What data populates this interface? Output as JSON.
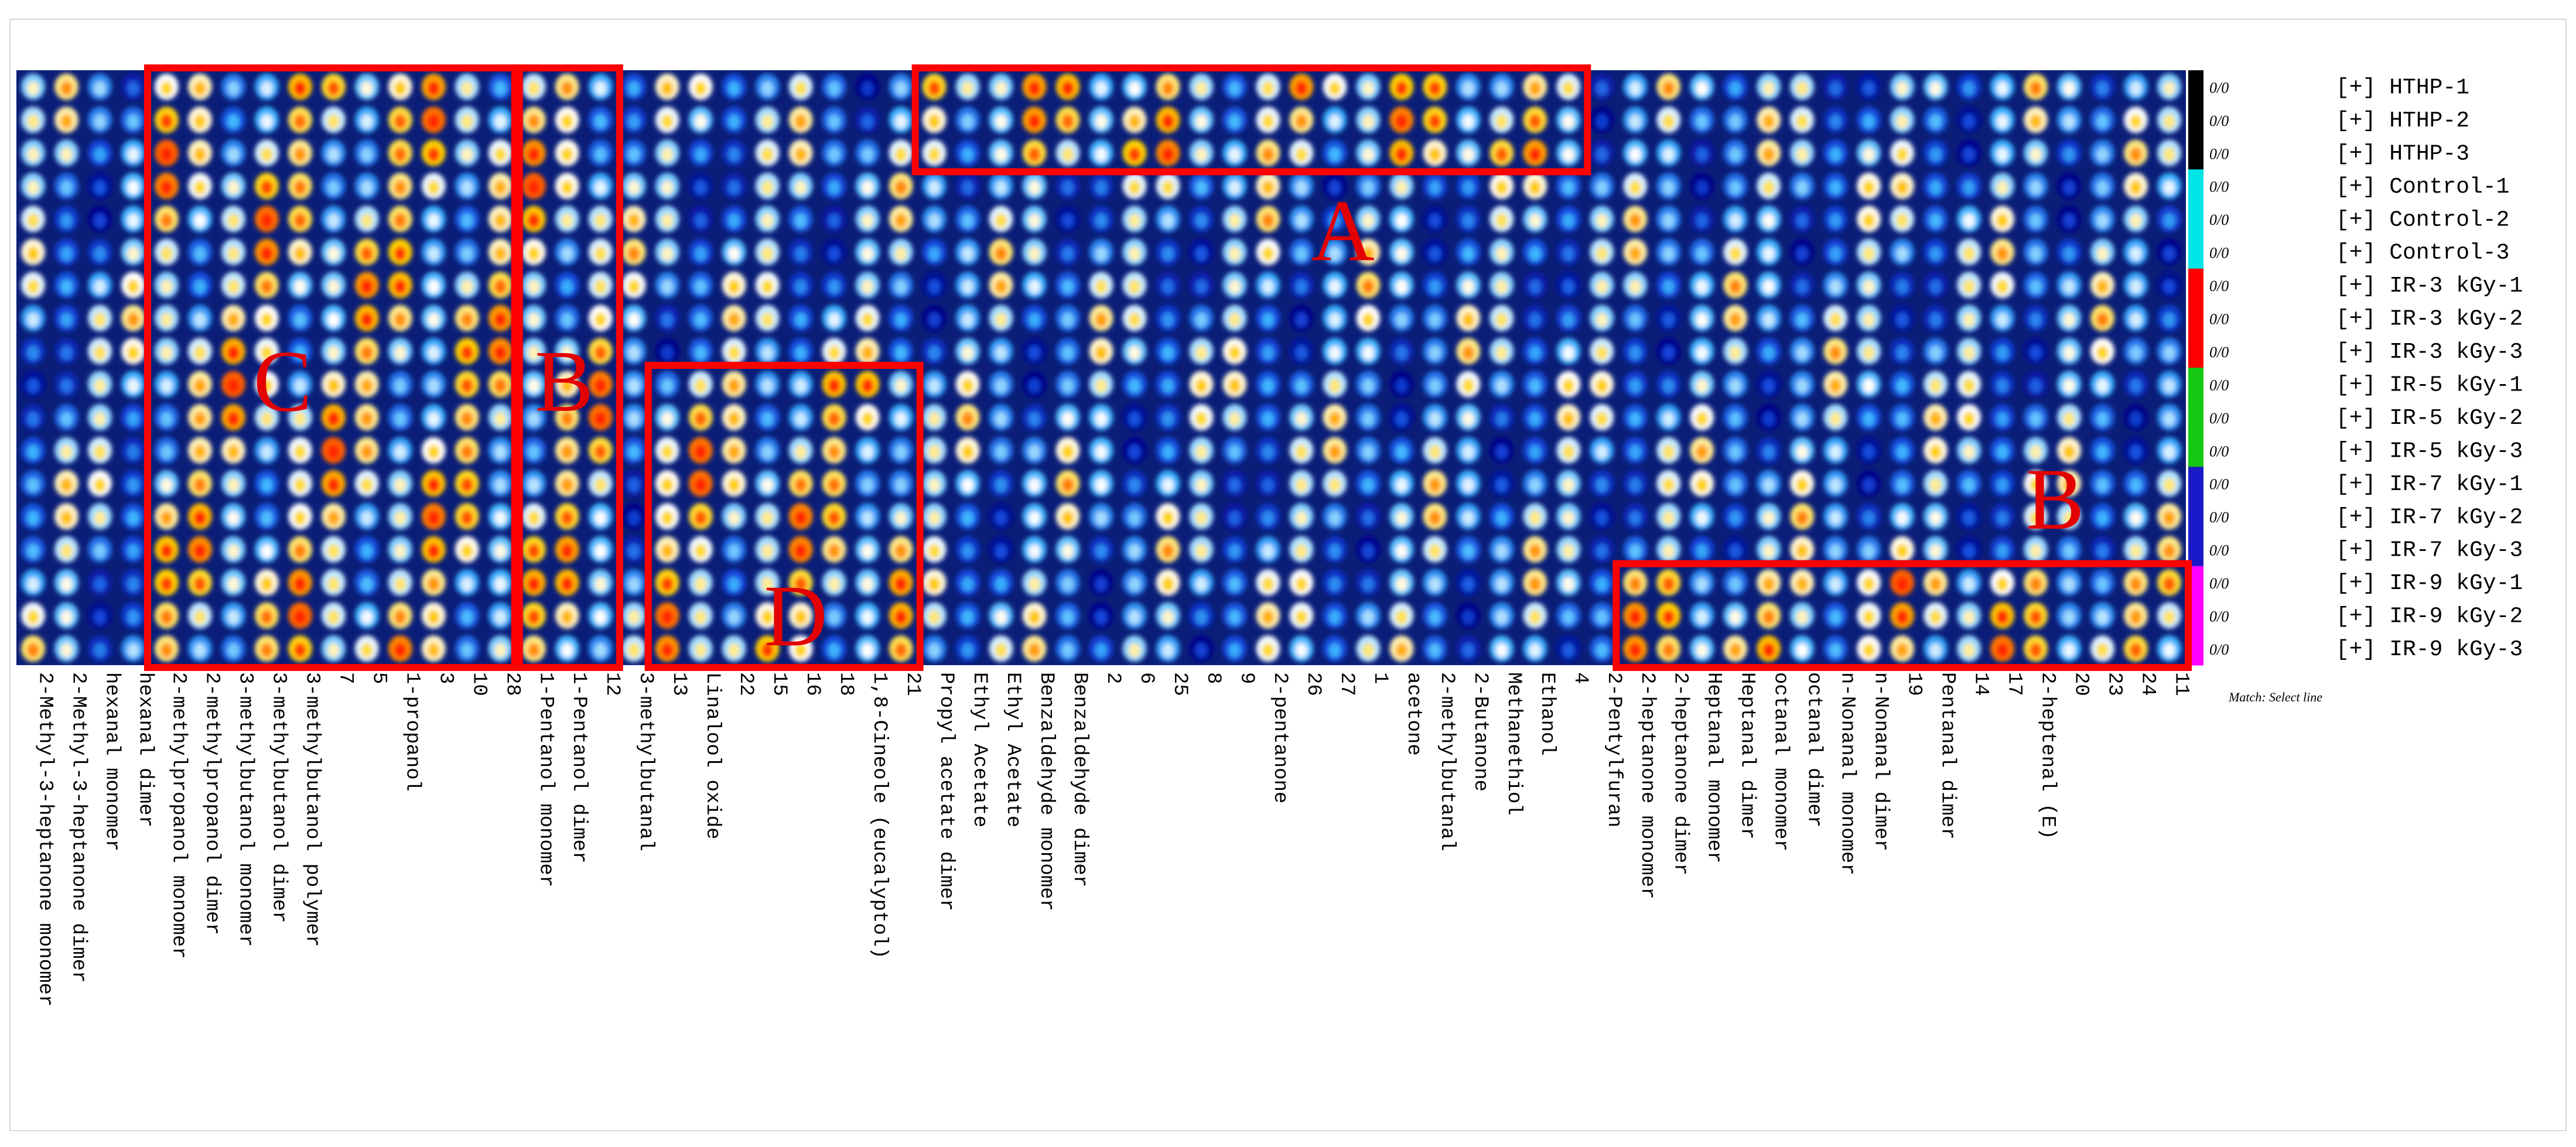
{
  "chart_data": {
    "type": "heatmap",
    "title": "",
    "xlabel": "",
    "ylabel": "",
    "legend": "right",
    "rows": [
      {
        "label": "[+] HTHP-1",
        "value": "0/0",
        "group_color": "#000000"
      },
      {
        "label": "[+] HTHP-2",
        "value": "0/0",
        "group_color": "#000000"
      },
      {
        "label": "[+] HTHP-3",
        "value": "0/0",
        "group_color": "#000000"
      },
      {
        "label": "[+] Control-1",
        "value": "0/0",
        "group_color": "#00e5e5"
      },
      {
        "label": "[+] Control-2",
        "value": "0/0",
        "group_color": "#00e5e5"
      },
      {
        "label": "[+] Control-3",
        "value": "0/0",
        "group_color": "#00e5e5"
      },
      {
        "label": "[+] IR-3 kGy-1",
        "value": "0/0",
        "group_color": "#ff0000"
      },
      {
        "label": "[+] IR-3 kGy-2",
        "value": "0/0",
        "group_color": "#ff0000"
      },
      {
        "label": "[+] IR-3 kGy-3",
        "value": "0/0",
        "group_color": "#ff0000"
      },
      {
        "label": "[+] IR-5 kGy-1",
        "value": "0/0",
        "group_color": "#14c814"
      },
      {
        "label": "[+] IR-5 kGy-2",
        "value": "0/0",
        "group_color": "#14c814"
      },
      {
        "label": "[+] IR-5 kGy-3",
        "value": "0/0",
        "group_color": "#14c814"
      },
      {
        "label": "[+] IR-7 kGy-1",
        "value": "0/0",
        "group_color": "#1a1ac8"
      },
      {
        "label": "[+] IR-7 kGy-2",
        "value": "0/0",
        "group_color": "#1a1ac8"
      },
      {
        "label": "[+] IR-7 kGy-3",
        "value": "0/0",
        "group_color": "#1a1ac8"
      },
      {
        "label": "[+] IR-9 kGy-1",
        "value": "0/0",
        "group_color": "#ff00ff"
      },
      {
        "label": "[+] IR-9 kGy-2",
        "value": "0/0",
        "group_color": "#ff00ff"
      },
      {
        "label": "[+] IR-9 kGy-3",
        "value": "0/0",
        "group_color": "#ff00ff"
      }
    ],
    "columns": [
      "2-Methyl-3-heptanone monomer",
      "2-Methyl-3-heptanone dimer",
      "hexanal monomer",
      "hexanal dimer",
      "2-methylpropanol monomer",
      "2-methylpropanol dimer",
      "3-methylbutanol monomer",
      "3-methylbutanol dimer",
      "3-methylbutanol polymer",
      "7",
      "5",
      "1-propanol",
      "3",
      "10",
      "28",
      "1-Pentanol monomer",
      "1-Pentanol dimer",
      "12",
      "3-methylbutanal",
      "13",
      "Linalool oxide",
      "22",
      "15",
      "16",
      "18",
      "1,8-Cineole (eucalyptol)",
      "21",
      "Propyl acetate dimer",
      "Ethyl Acetate",
      "Ethyl Acetate",
      "Benzaldehyde monomer",
      "Benzaldehyde dimer",
      "2",
      "6",
      "25",
      "8",
      "9",
      "2-pentanone",
      "26",
      "27",
      "1",
      "acetone",
      "2-methylbutanal",
      "2-Butanone",
      "Methanethiol",
      "Ethanol",
      "4",
      "2-Pentylfuran",
      "2-heptanone monomer",
      "2-heptanone dimer",
      "Heptanal monomer",
      "Heptanal dimer",
      "octanal monomer",
      "octanal dimer",
      "n-Nonanal monomer",
      "n-Nonanal dimer",
      "19",
      "Pentanal dimer",
      "14",
      "17",
      "2-heptenal (E)",
      "20",
      "23",
      "24",
      "11"
    ],
    "regions": [
      {
        "label": "A",
        "rows": [
          0,
          2
        ],
        "columns": [
          27,
          46
        ]
      },
      {
        "label": "B",
        "rows": [
          0,
          17
        ],
        "columns": [
          15,
          17
        ]
      },
      {
        "label": "B",
        "rows": [
          15,
          17
        ],
        "columns": [
          48,
          64
        ]
      },
      {
        "label": "C",
        "rows": [
          0,
          17
        ],
        "columns": [
          4,
          14
        ]
      },
      {
        "label": "D",
        "rows": [
          9,
          17
        ],
        "columns": [
          19,
          26
        ]
      }
    ],
    "color_scale": [
      "#00008b",
      "#1446dc",
      "#3cb4ff",
      "#ffffff",
      "#ffd200",
      "#ff2800"
    ],
    "footer": "Match: Select line"
  }
}
